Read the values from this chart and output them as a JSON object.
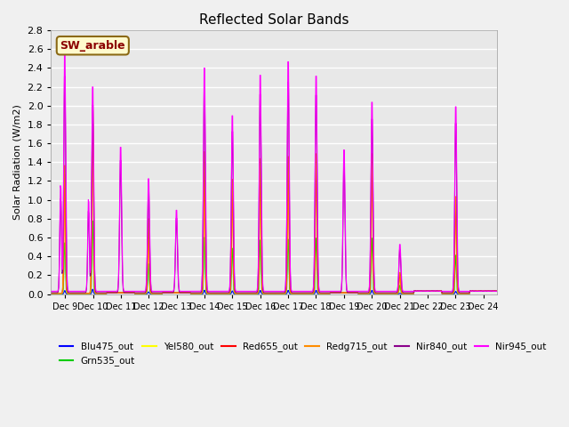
{
  "title": "Reflected Solar Bands",
  "ylabel": "Solar Radiation (W/m2)",
  "xlabel": "",
  "annotation": "SW_arable",
  "annotation_color": "#8B0000",
  "annotation_bg": "#FFFACD",
  "annotation_border": "#8B6914",
  "ylim": [
    0.0,
    2.8
  ],
  "yticks": [
    0.0,
    0.2,
    0.4,
    0.6,
    0.8,
    1.0,
    1.2,
    1.4,
    1.6,
    1.8,
    2.0,
    2.2,
    2.4,
    2.6,
    2.8
  ],
  "xtick_labels": [
    "Dec 9",
    "Dec 10",
    "Dec 11",
    "Dec 12",
    "Dec 13",
    "Dec 14",
    "Dec 15",
    "Dec 16",
    "Dec 17",
    "Dec 18",
    "Dec 19",
    "Dec 20",
    "Dec 21",
    "Dec 22",
    "Dec 23",
    "Dec 24"
  ],
  "num_days": 16,
  "points_per_day": 48,
  "series": [
    {
      "name": "Blu475_out",
      "color": "#0000FF"
    },
    {
      "name": "Grn535_out",
      "color": "#00CC00"
    },
    {
      "name": "Yel580_out",
      "color": "#FFFF00"
    },
    {
      "name": "Red655_out",
      "color": "#FF0000"
    },
    {
      "name": "Redg715_out",
      "color": "#FF8C00"
    },
    {
      "name": "Nir840_out",
      "color": "#8B008B"
    },
    {
      "name": "Nir945_out",
      "color": "#FF00FF"
    }
  ],
  "nir945_peak_heights": [
    2.62,
    2.27,
    1.6,
    1.25,
    0.9,
    2.48,
    1.95,
    2.4,
    2.55,
    2.39,
    1.57,
    2.1,
    0.52,
    0.0,
    2.05,
    0.0
  ],
  "main_peaks": [
    1.85,
    2.65,
    0.0,
    1.08,
    0.0,
    2.05,
    1.65,
    1.95,
    1.98,
    2.02,
    0.0,
    2.02,
    0.3,
    0.0,
    1.4,
    0.0
  ],
  "plot_bg_color": "#E8E8E8",
  "fig_bg_color": "#F0F0F0",
  "grid_color": "#FFFFFF",
  "legend_items": [
    {
      "name": "Blu475_out",
      "color": "#0000FF"
    },
    {
      "name": "Grn535_out",
      "color": "#00CC00"
    },
    {
      "name": "Yel580_out",
      "color": "#FFFF00"
    },
    {
      "name": "Red655_out",
      "color": "#FF0000"
    },
    {
      "name": "Redg715_out",
      "color": "#FF8C00"
    },
    {
      "name": "Nir840_out",
      "color": "#8B008B"
    },
    {
      "name": "Nir945_out",
      "color": "#FF00FF"
    }
  ]
}
